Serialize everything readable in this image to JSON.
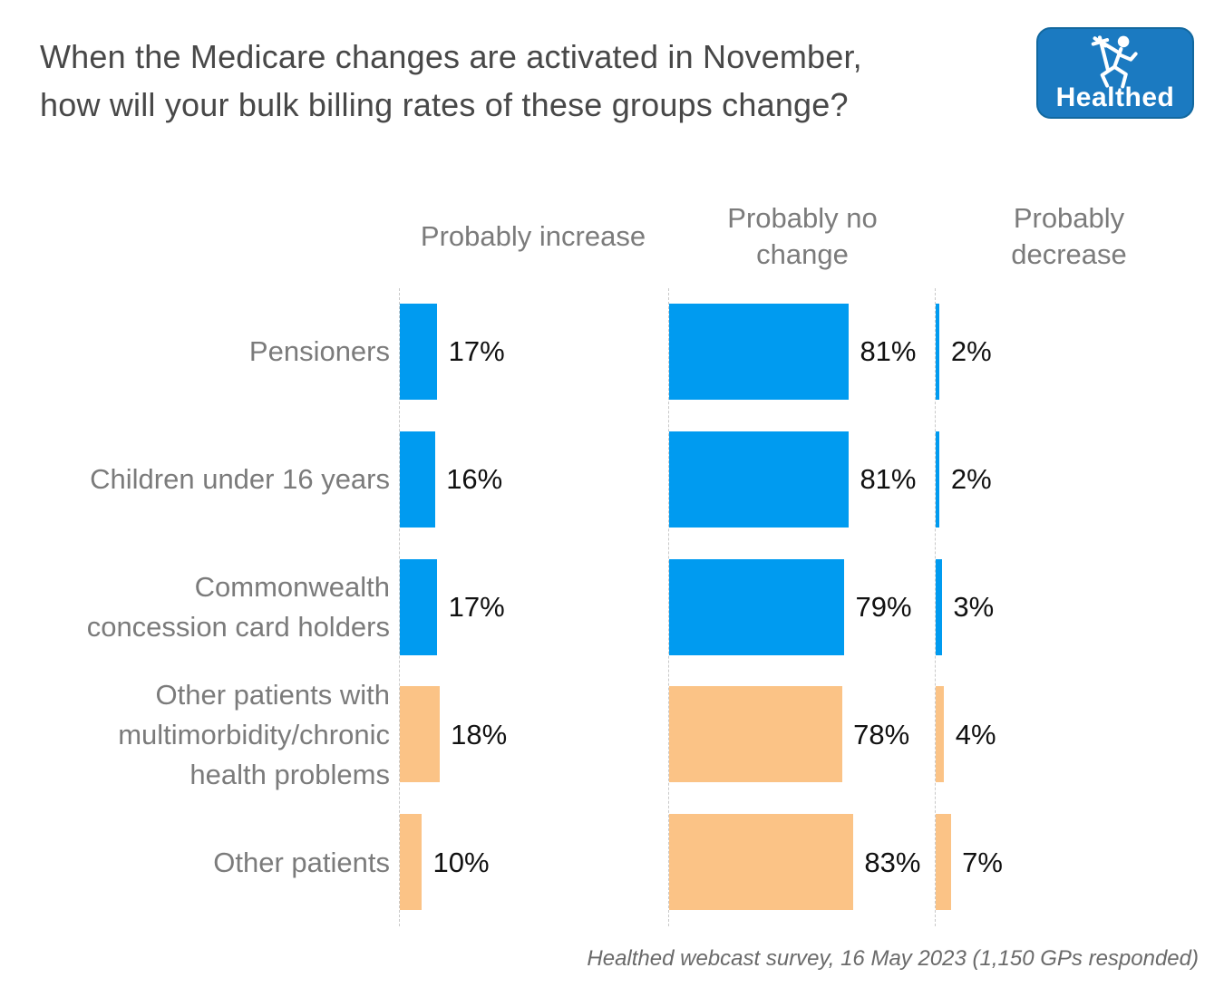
{
  "header": {
    "title": "When the Medicare changes are activated in November,\nhow will your bulk billing rates of these groups change?"
  },
  "logo": {
    "wordmark": "Healthed",
    "icon": "hermes-caduceus-runner-icon",
    "bg_color": "#1b7ac1"
  },
  "footer": {
    "source_note": "Healthed webcast survey, 16 May 2023 (1,150 GPs responded)"
  },
  "chart_data": {
    "type": "bar",
    "orientation": "horizontal",
    "title": "When the Medicare changes are activated in November, how will your bulk billing rates of these groups change?",
    "categories": [
      "Pensioners",
      "Children under 16 years",
      "Commonwealth\nconcession card holders",
      "Other patients with\nmultimorbidity/chronic\nhealth problems",
      "Other patients"
    ],
    "series": [
      {
        "name": "Probably increase",
        "values": [
          17,
          16,
          17,
          18,
          10
        ]
      },
      {
        "name": "Probably no\nchange",
        "values": [
          81,
          81,
          79,
          78,
          83
        ]
      },
      {
        "name": "Probably decrease",
        "values": [
          2,
          2,
          3,
          4,
          7
        ]
      }
    ],
    "value_suffix": "%",
    "value_labels_shown": true,
    "row_colors": [
      "#009bf0",
      "#009bf0",
      "#009bf0",
      "#fbc386",
      "#fbc386"
    ],
    "palette": {
      "blue": "#009bf0",
      "orange": "#fbc386"
    },
    "xlim": [
      0,
      120
    ],
    "grid": "dashed zero baseline per column",
    "legend_position": "column headers on top",
    "colors_meaning": {
      "blue": "concession-type patient groups",
      "orange": "other patient groups"
    }
  }
}
